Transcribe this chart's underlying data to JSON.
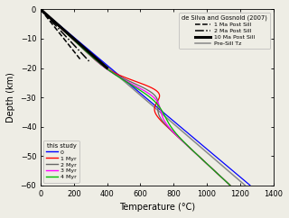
{
  "title": "de Silva and Gosnold (2007)",
  "xlabel": "Temperature (°C)",
  "ylabel": "Depth (km)",
  "xlim": [
    0,
    1400
  ],
  "ylim": [
    -60,
    0
  ],
  "xticks": [
    0,
    200,
    400,
    600,
    800,
    1000,
    1200,
    1400
  ],
  "yticks": [
    0,
    -10,
    -20,
    -30,
    -40,
    -50,
    -60
  ],
  "background_color": "#eeede5",
  "fig_width": 3.2,
  "fig_height": 2.42,
  "dpi": 100,
  "gosnold_lines": {
    "1Ma": {
      "style": "dashed",
      "color": "black",
      "lw": 1.1,
      "label": "1 Ma Post Sill"
    },
    "2Ma": {
      "style": "dashdot",
      "color": "black",
      "lw": 1.1,
      "label": "2 Ma Post Sill"
    },
    "10Ma": {
      "style": "solid",
      "color": "black",
      "lw": 2.2,
      "label": "10 Ma Post Sill"
    },
    "PreSill": {
      "style": "solid",
      "color": "#888888",
      "lw": 1.1,
      "label": "Pre-Sill Tz"
    }
  },
  "study_lines": [
    {
      "label": "0",
      "color": "#0000ff"
    },
    {
      "label": "1 Myr",
      "color": "#ff0000"
    },
    {
      "label": "2 Myr",
      "color": "#666666"
    },
    {
      "label": "3 Myr",
      "color": "#ff00ff"
    },
    {
      "label": "4 Myr",
      "color": "#00bb00"
    }
  ]
}
